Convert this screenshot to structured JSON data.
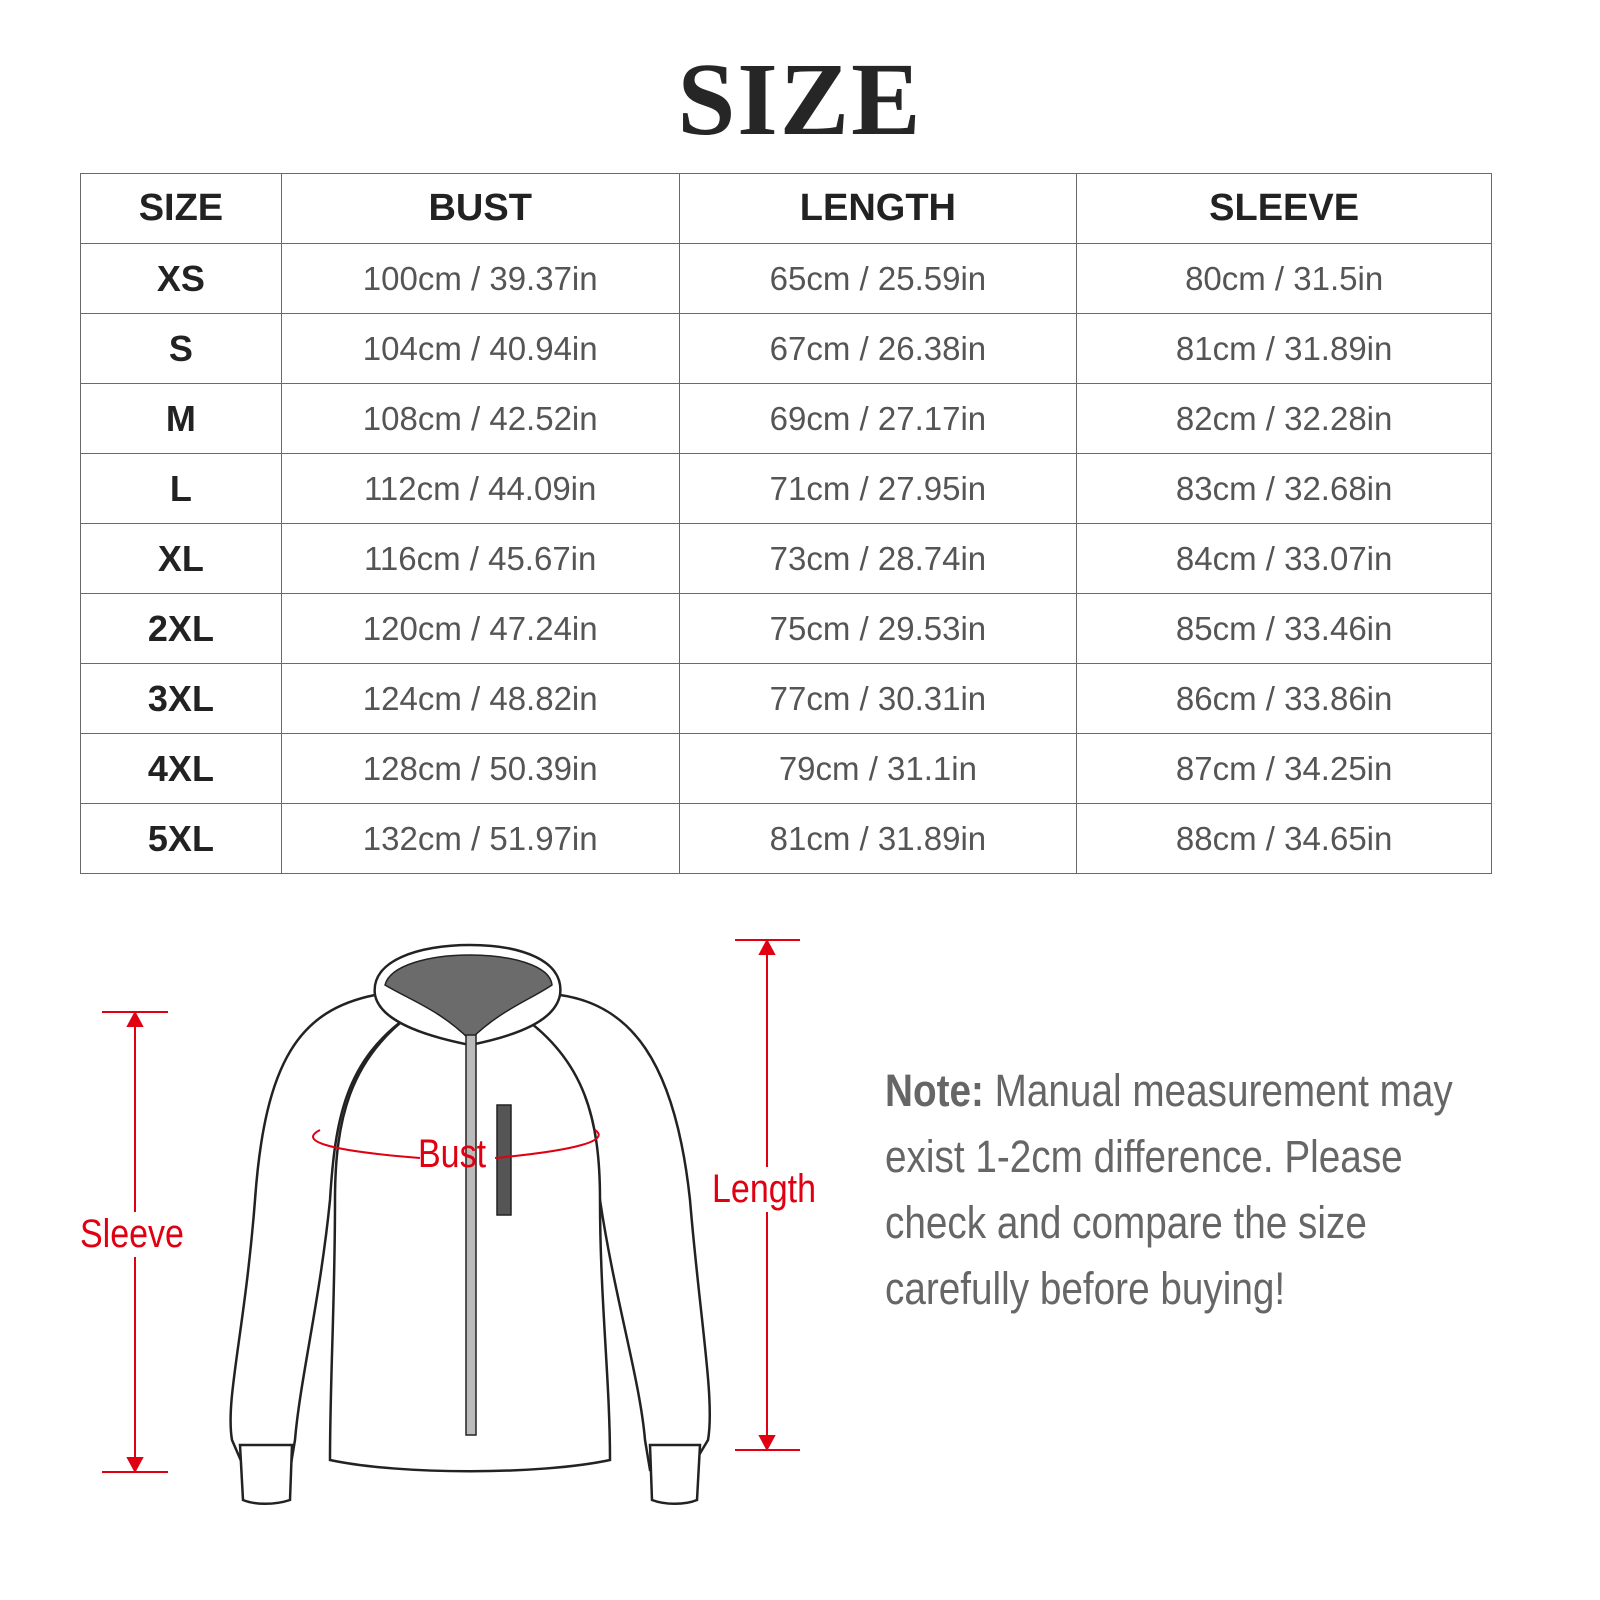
{
  "title": "SIZE",
  "table": {
    "headers": [
      "SIZE",
      "BUST",
      "LENGTH",
      "SLEEVE"
    ],
    "rows": [
      [
        "XS",
        "100cm / 39.37in",
        "65cm / 25.59in",
        "80cm / 31.5in"
      ],
      [
        "S",
        "104cm / 40.94in",
        "67cm / 26.38in",
        "81cm / 31.89in"
      ],
      [
        "M",
        "108cm / 42.52in",
        "69cm / 27.17in",
        "82cm / 32.28in"
      ],
      [
        "L",
        "112cm / 44.09in",
        "71cm / 27.95in",
        "83cm / 32.68in"
      ],
      [
        "XL",
        "116cm / 45.67in",
        "73cm / 28.74in",
        "84cm / 33.07in"
      ],
      [
        "2XL",
        "120cm / 47.24in",
        "75cm / 29.53in",
        "85cm / 33.46in"
      ],
      [
        "3XL",
        "124cm / 48.82in",
        "77cm / 30.31in",
        "86cm / 33.86in"
      ],
      [
        "4XL",
        "128cm / 50.39in",
        "79cm / 31.1in",
        "87cm / 34.25in"
      ],
      [
        "5XL",
        "132cm / 51.97in",
        "81cm / 31.89in",
        "88cm / 34.65in"
      ]
    ]
  },
  "diagram": {
    "labels": {
      "sleeve": "Sleeve",
      "bust": "Bust",
      "length": "Length"
    },
    "accent_color": "#e00012"
  },
  "note": {
    "label": "Note:",
    "text": " Manual measurement may exist 1-2cm difference. Please check and compare the size carefully before buying!"
  }
}
